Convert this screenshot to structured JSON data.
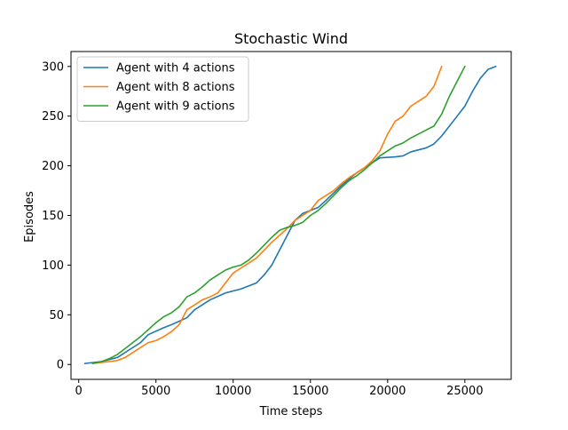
{
  "chart_data": {
    "type": "line",
    "title": "Stochastic Wind",
    "xlabel": "Time steps",
    "ylabel": "Episodes",
    "xlim": [
      -500,
      28000
    ],
    "ylim": [
      -15,
      315
    ],
    "xticks": [
      0,
      5000,
      10000,
      15000,
      20000,
      25000
    ],
    "yticks": [
      0,
      50,
      100,
      150,
      200,
      250,
      300
    ],
    "xtick_labels": [
      "0",
      "5000",
      "10000",
      "15000",
      "20000",
      "25000"
    ],
    "ytick_labels": [
      "0",
      "50",
      "100",
      "150",
      "200",
      "250",
      "300"
    ],
    "grid": false,
    "legend_position": "upper-left",
    "series": [
      {
        "name": "Agent with 4 actions",
        "color": "#1f77b4",
        "x": [
          400,
          1500,
          2500,
          3000,
          4000,
          4500,
          5500,
          6000,
          7000,
          7500,
          8500,
          9500,
          10500,
          11500,
          12000,
          12500,
          13000,
          13500,
          14000,
          14500,
          15500,
          16000,
          17000,
          18000,
          19000,
          19500,
          20500,
          21000,
          21500,
          22000,
          22500,
          23000,
          23500,
          24000,
          24500,
          25000,
          25500,
          26000,
          26500,
          27000
        ],
        "y": [
          1,
          3,
          7,
          12,
          22,
          30,
          37,
          40,
          47,
          55,
          65,
          72,
          76,
          82,
          90,
          100,
          115,
          130,
          145,
          152,
          158,
          165,
          180,
          193,
          203,
          208,
          209,
          210,
          214,
          216,
          218,
          222,
          230,
          240,
          250,
          260,
          275,
          288,
          297,
          300
        ]
      },
      {
        "name": "Agent with 8 actions",
        "color": "#ff7f0e",
        "x": [
          900,
          1500,
          2500,
          3000,
          3500,
          4000,
          4500,
          5000,
          5500,
          6000,
          6500,
          7000,
          7500,
          8000,
          8500,
          9000,
          9500,
          10000,
          10500,
          11000,
          11500,
          12000,
          12500,
          13000,
          13500,
          14000,
          14500,
          15000,
          15500,
          16000,
          16500,
          17000,
          17500,
          18000,
          18500,
          19000,
          19500,
          20000,
          20500,
          21000,
          21500,
          22000,
          22500,
          23000,
          23500
        ],
        "y": [
          1,
          2,
          4,
          7,
          12,
          17,
          22,
          24,
          28,
          33,
          40,
          55,
          60,
          65,
          68,
          72,
          82,
          92,
          97,
          102,
          107,
          115,
          123,
          130,
          137,
          145,
          150,
          155,
          165,
          170,
          175,
          182,
          188,
          193,
          198,
          205,
          215,
          232,
          245,
          250,
          260,
          265,
          270,
          280,
          300
        ]
      },
      {
        "name": "Agent with 9 actions",
        "color": "#2ca02c",
        "x": [
          900,
          1500,
          2000,
          2500,
          3000,
          3500,
          4000,
          4500,
          5000,
          5500,
          6000,
          6500,
          7000,
          7500,
          8000,
          8500,
          9000,
          9500,
          10000,
          10500,
          11000,
          11500,
          12000,
          12500,
          13000,
          13500,
          14000,
          14500,
          15000,
          15500,
          16000,
          16500,
          17000,
          17500,
          18000,
          18500,
          19000,
          19500,
          20000,
          20500,
          21000,
          21500,
          22000,
          22500,
          23000,
          23500,
          24000,
          24500,
          25000
        ],
        "y": [
          1,
          3,
          6,
          10,
          16,
          22,
          28,
          35,
          42,
          48,
          52,
          58,
          68,
          72,
          78,
          85,
          90,
          95,
          98,
          100,
          105,
          112,
          120,
          128,
          135,
          138,
          140,
          143,
          150,
          155,
          162,
          170,
          178,
          185,
          190,
          196,
          203,
          210,
          215,
          220,
          223,
          228,
          232,
          236,
          240,
          252,
          270,
          285,
          300
        ]
      }
    ]
  }
}
